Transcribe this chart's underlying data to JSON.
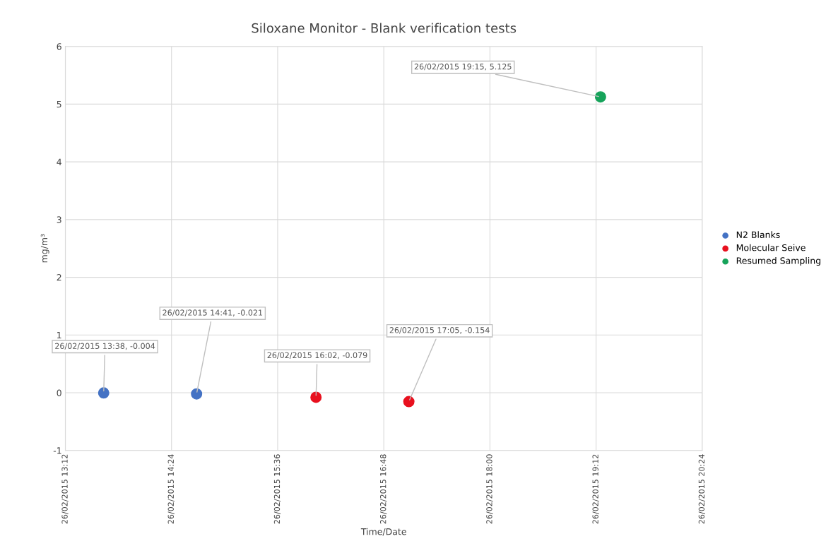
{
  "chart_data": {
    "type": "scatter",
    "title": "Siloxane Monitor - Blank verification tests",
    "xlabel": "Time/Date",
    "ylabel": "mg/m³",
    "xlim": [
      "2015-02-26T13:12",
      "2015-02-26T20:24"
    ],
    "xticks": [
      {
        "value": "2015-02-26T13:12",
        "label": "26/02/2015 13:12"
      },
      {
        "value": "2015-02-26T14:24",
        "label": "26/02/2015 14:24"
      },
      {
        "value": "2015-02-26T15:36",
        "label": "26/02/2015 15:36"
      },
      {
        "value": "2015-02-26T16:48",
        "label": "26/02/2015 16:48"
      },
      {
        "value": "2015-02-26T18:00",
        "label": "26/02/2015 18:00"
      },
      {
        "value": "2015-02-26T19:12",
        "label": "26/02/2015 19:12"
      },
      {
        "value": "2015-02-26T20:24",
        "label": "26/02/2015 20:24"
      }
    ],
    "ylim": [
      -1,
      6
    ],
    "yticks": [
      -1,
      0,
      1,
      2,
      3,
      4,
      5,
      6
    ],
    "series": [
      {
        "name": "N2 Blanks",
        "color": "#4472c4",
        "x": [
          "2015-02-26T13:38",
          "2015-02-26T14:41"
        ],
        "values": [
          -0.004,
          -0.021
        ]
      },
      {
        "name": "Molecular Seive",
        "color": "#e8101e",
        "x": [
          "2015-02-26T16:02",
          "2015-02-26T17:05"
        ],
        "values": [
          -0.079,
          -0.154
        ]
      },
      {
        "name": "Resumed Sampling",
        "color": "#16a35a",
        "x": [
          "2015-02-26T19:15"
        ],
        "values": [
          5.125
        ]
      }
    ],
    "annotations": [
      {
        "text": "26/02/2015 13:38, -0.004",
        "x": "2015-02-26T13:38",
        "y": -0.004
      },
      {
        "text": "26/02/2015 14:41, -0.021",
        "x": "2015-02-26T14:41",
        "y": -0.021
      },
      {
        "text": "26/02/2015 16:02, -0.079",
        "x": "2015-02-26T16:02",
        "y": -0.079
      },
      {
        "text": "26/02/2015 17:05, -0.154",
        "x": "2015-02-26T17:05",
        "y": -0.154
      },
      {
        "text": "26/02/2015 19:15, 5.125",
        "x": "2015-02-26T19:15",
        "y": 5.125
      }
    ],
    "grid": true,
    "legend": "right",
    "marker": "circle"
  }
}
